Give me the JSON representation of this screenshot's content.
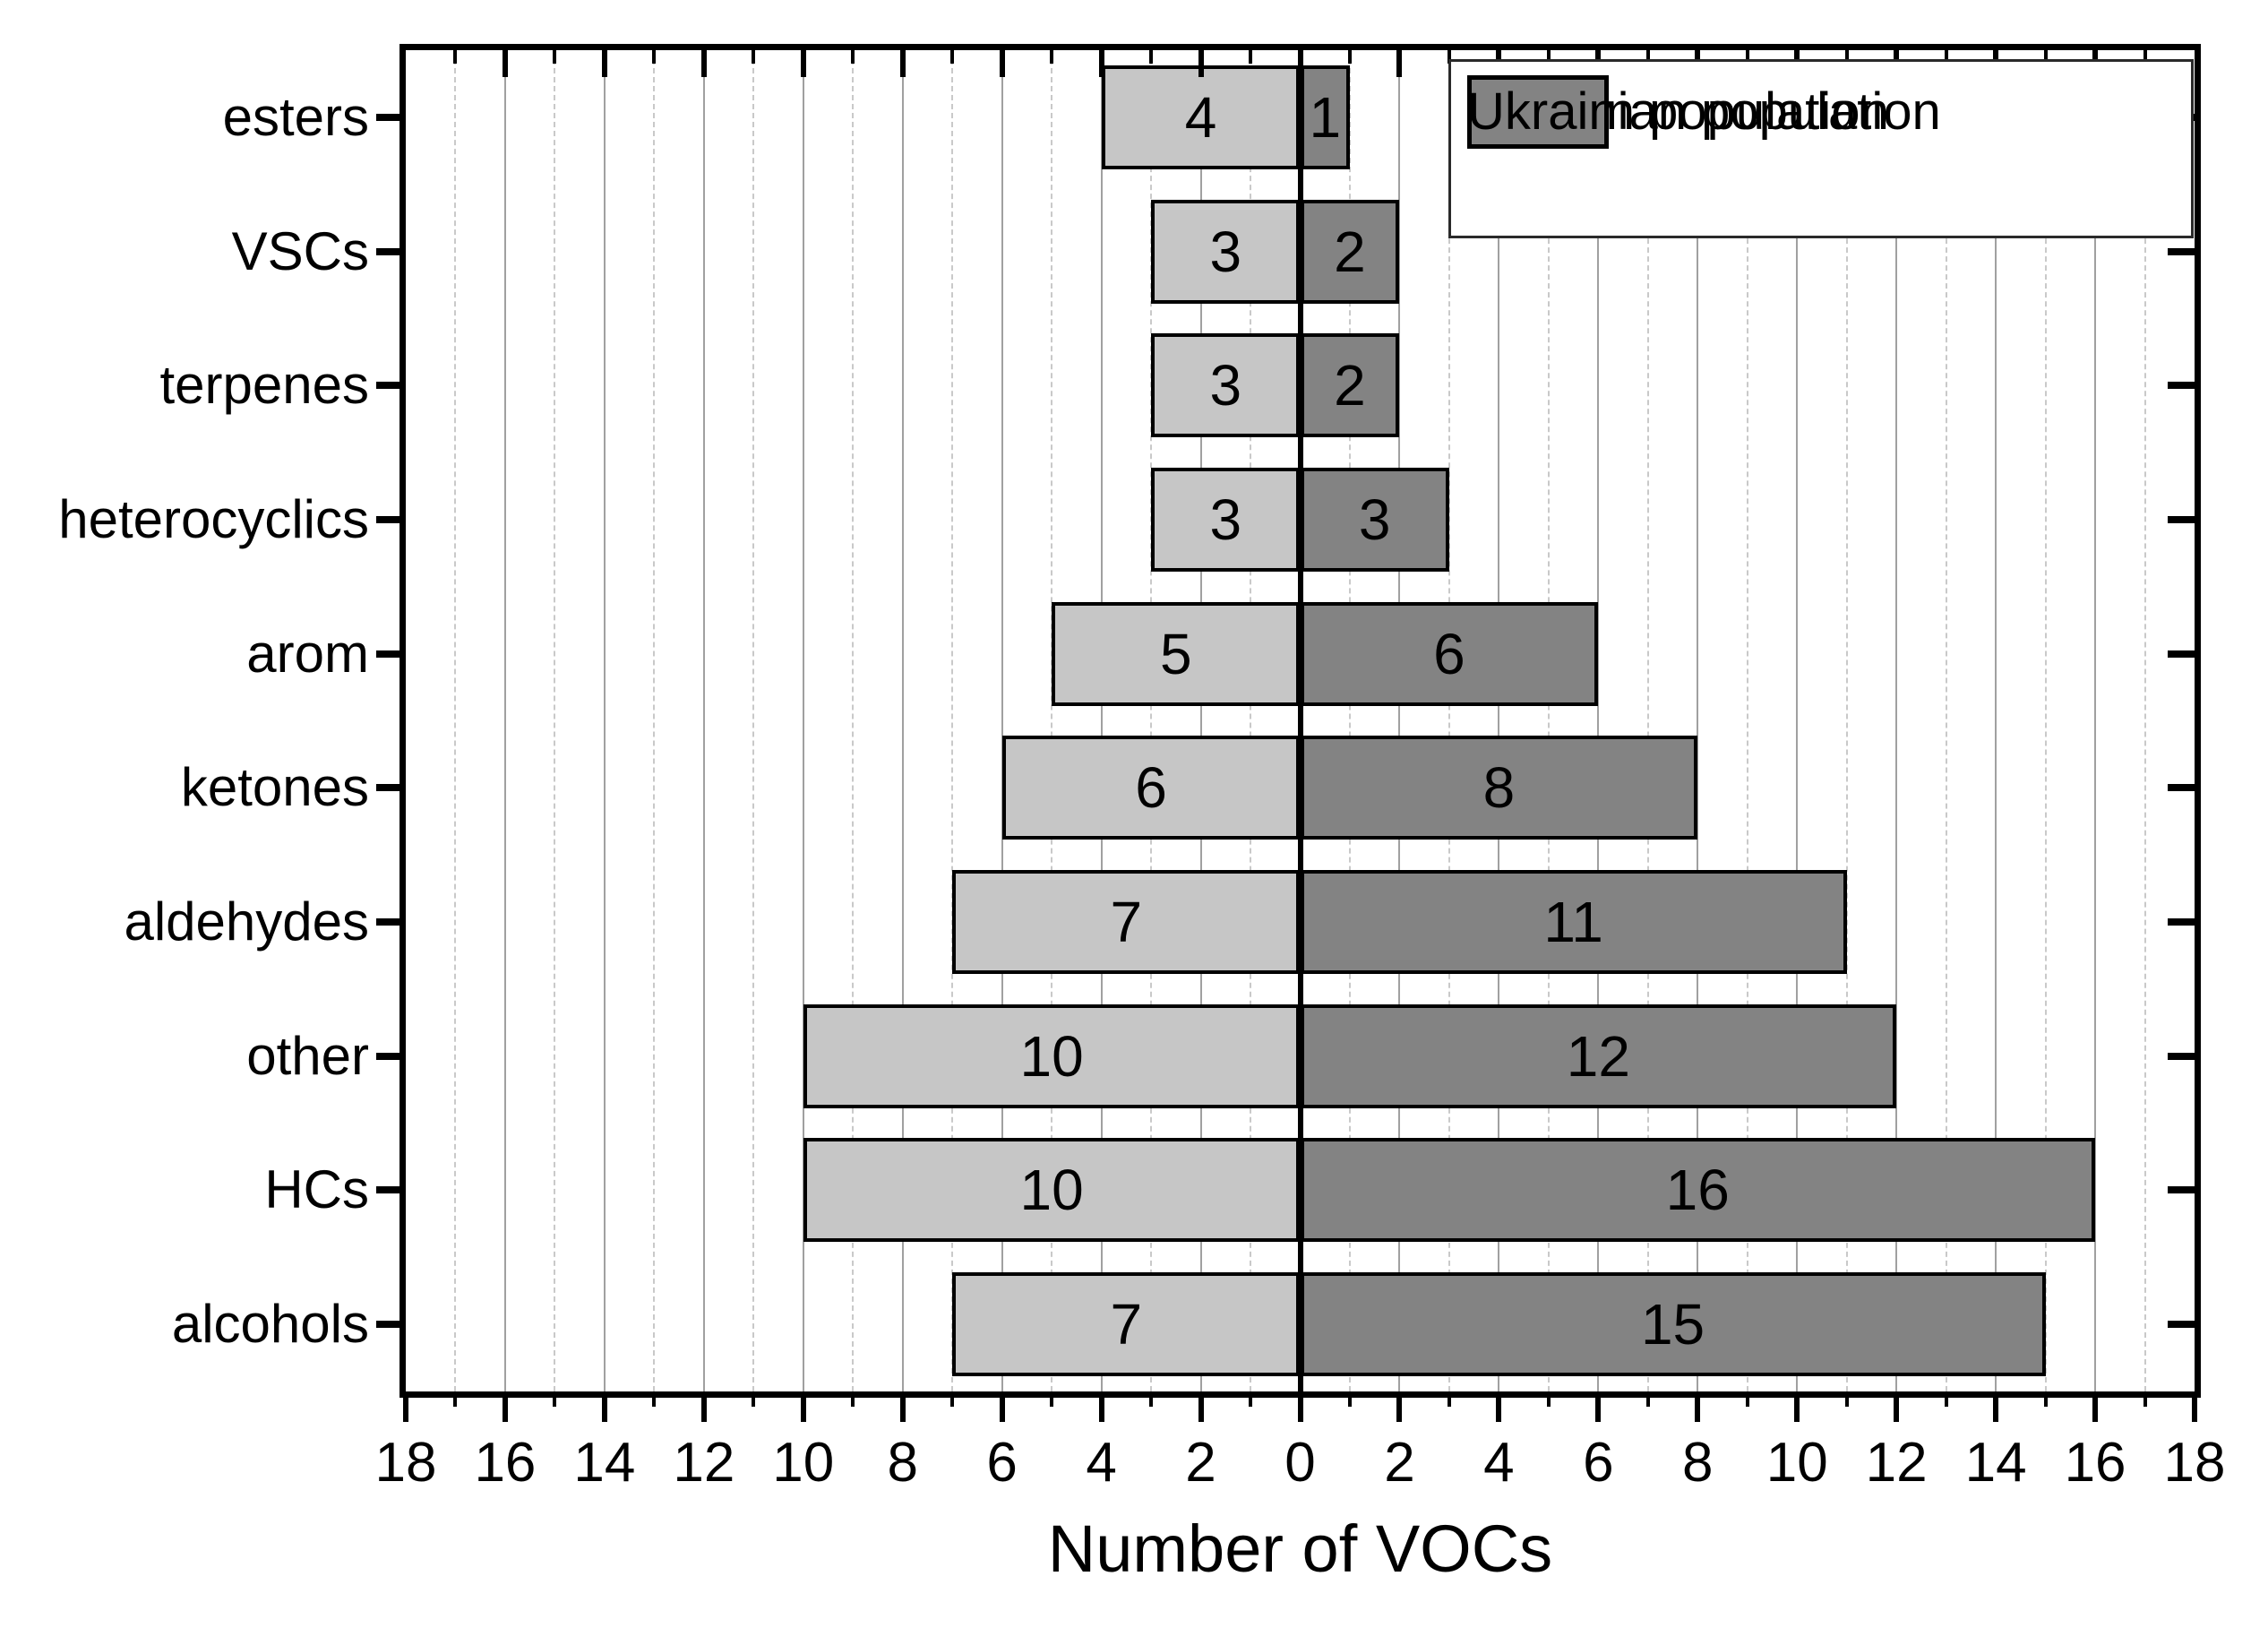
{
  "figure": {
    "background": "#ffffff"
  },
  "chart_data": {
    "type": "bar",
    "orientation": "horizontal-diverging",
    "title": "",
    "xlabel": "Number of VOCs",
    "ylabel": "",
    "categories": [
      "esters",
      "VSCs",
      "terpenes",
      "heterocyclics",
      "arom",
      "ketones",
      "aldehydes",
      "other",
      "HCs",
      "alcohols"
    ],
    "series": [
      {
        "name": "Latvian population",
        "side": "left",
        "color": "#c6c6c6",
        "values": [
          4,
          3,
          3,
          3,
          5,
          6,
          7,
          10,
          10,
          7
        ]
      },
      {
        "name": "Ukrainian population",
        "side": "right",
        "color": "#838383",
        "values": [
          1,
          2,
          2,
          3,
          6,
          8,
          11,
          12,
          16,
          15
        ]
      }
    ],
    "xlim": [
      -18,
      18
    ],
    "x_ticks": [
      {
        "label": "18",
        "value": -18
      },
      {
        "label": "16",
        "value": -16
      },
      {
        "label": "14",
        "value": -14
      },
      {
        "label": "12",
        "value": -12
      },
      {
        "label": "10",
        "value": -10
      },
      {
        "label": "8",
        "value": -8
      },
      {
        "label": "6",
        "value": -6
      },
      {
        "label": "4",
        "value": -4
      },
      {
        "label": "2",
        "value": -2
      },
      {
        "label": "0",
        "value": 0
      },
      {
        "label": "2",
        "value": 2
      },
      {
        "label": "4",
        "value": 4
      },
      {
        "label": "6",
        "value": 6
      },
      {
        "label": "8",
        "value": 8
      },
      {
        "label": "10",
        "value": 10
      },
      {
        "label": "12",
        "value": 12
      },
      {
        "label": "14",
        "value": 14
      },
      {
        "label": "16",
        "value": 16
      },
      {
        "label": "18",
        "value": 18
      }
    ],
    "minor_tick_step": 1,
    "grid": {
      "major_style": "solid",
      "minor_style": "dashed",
      "major_color": "#a0a0a0",
      "minor_color": "#c9c9c9"
    },
    "bar_outline_color": "#000000",
    "value_labels_shown": true,
    "legend_position": "top-right"
  },
  "legend": {
    "items": [
      {
        "label": "Latvian population",
        "color": "#c6c6c6"
      },
      {
        "label": "Ukrainian population",
        "color": "#838383"
      }
    ]
  }
}
